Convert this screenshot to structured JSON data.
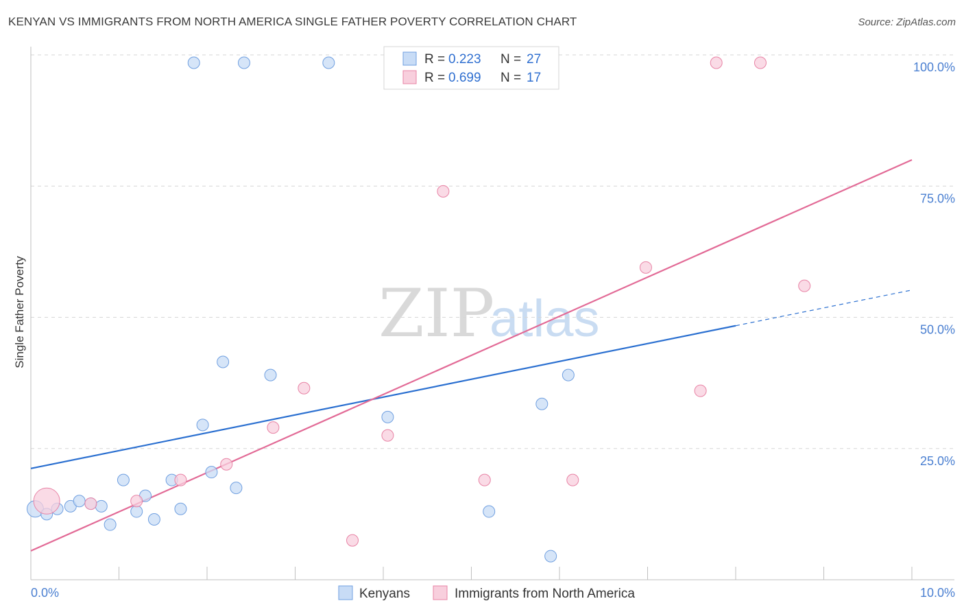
{
  "header": {
    "title": "KENYAN VS IMMIGRANTS FROM NORTH AMERICA SINGLE FATHER POVERTY CORRELATION CHART",
    "source": "Source: ZipAtlas.com"
  },
  "watermark": {
    "zip": "ZIP",
    "atlas": "atlas"
  },
  "colors": {
    "kenyan": "#6f9fe0",
    "kenyan_fill": "#c8dcf6",
    "kenyan_line": "#2a6fd0",
    "imm": "#e883a5",
    "imm_fill": "#f8cfdd",
    "imm_line": "#e26a96",
    "grid": "#d6d6d6",
    "tick_text": "#4a7fd1"
  },
  "legend": {
    "r_label": "R =",
    "n_label": "N =",
    "rows": [
      {
        "r": "0.223",
        "n": "27"
      },
      {
        "r": "0.699",
        "n": "17"
      }
    ]
  },
  "chart_data": {
    "type": "scatter",
    "title": "KENYAN VS IMMIGRANTS FROM NORTH AMERICA SINGLE FATHER POVERTY CORRELATION CHART",
    "xlabel": "",
    "ylabel": "Single Father Poverty",
    "xlim": [
      0,
      10
    ],
    "ylim": [
      0,
      100
    ],
    "x_tick_labels": [
      "0.0%",
      "10.0%"
    ],
    "y_tick_labels": [
      "100.0%",
      "75.0%",
      "50.0%",
      "25.0%"
    ],
    "y_ticks": [
      100,
      75,
      50,
      25
    ],
    "grid": true,
    "series": [
      {
        "name": "Kenyans",
        "r": 0.223,
        "n": 27,
        "points": [
          [
            0.05,
            13.5,
            "l"
          ],
          [
            0.18,
            12.5
          ],
          [
            0.3,
            13.5
          ],
          [
            0.45,
            14
          ],
          [
            0.55,
            15
          ],
          [
            0.68,
            14.5
          ],
          [
            0.8,
            14
          ],
          [
            0.9,
            10.5
          ],
          [
            1.05,
            19
          ],
          [
            1.2,
            13
          ],
          [
            1.3,
            16
          ],
          [
            1.4,
            11.5
          ],
          [
            1.6,
            19
          ],
          [
            1.7,
            13.5
          ],
          [
            1.85,
            98.5
          ],
          [
            1.95,
            29.5
          ],
          [
            2.05,
            20.5
          ],
          [
            2.18,
            41.5
          ],
          [
            2.33,
            17.5
          ],
          [
            2.42,
            98.5
          ],
          [
            2.72,
            39
          ],
          [
            3.38,
            98.5
          ],
          [
            4.05,
            31
          ],
          [
            5.2,
            13
          ],
          [
            5.8,
            33.5
          ],
          [
            5.9,
            4.5
          ],
          [
            6.1,
            39
          ]
        ],
        "trend": {
          "x": [
            0,
            8.0
          ],
          "y": [
            21.2,
            48.4
          ],
          "dashed_x": [
            8.0,
            10.0
          ],
          "dashed_y": [
            48.4,
            55.2
          ]
        }
      },
      {
        "name": "Immigrants from North America",
        "r": 0.699,
        "n": 17,
        "points": [
          [
            0.18,
            15,
            "xl"
          ],
          [
            0.68,
            14.5
          ],
          [
            1.2,
            15
          ],
          [
            1.7,
            19
          ],
          [
            2.22,
            22
          ],
          [
            2.75,
            29
          ],
          [
            3.1,
            36.5
          ],
          [
            3.65,
            7.5
          ],
          [
            4.05,
            27.5
          ],
          [
            4.68,
            74
          ],
          [
            5.15,
            19
          ],
          [
            6.15,
            19
          ],
          [
            6.98,
            59.5
          ],
          [
            7.6,
            36
          ],
          [
            7.78,
            98.5
          ],
          [
            8.28,
            98.5
          ],
          [
            8.78,
            56
          ]
        ],
        "trend": {
          "x": [
            0,
            10.0
          ],
          "y": [
            5.5,
            80.0
          ]
        }
      }
    ]
  },
  "bottom_legend": [
    {
      "label": "Kenyans"
    },
    {
      "label": "Immigrants from North America"
    }
  ]
}
